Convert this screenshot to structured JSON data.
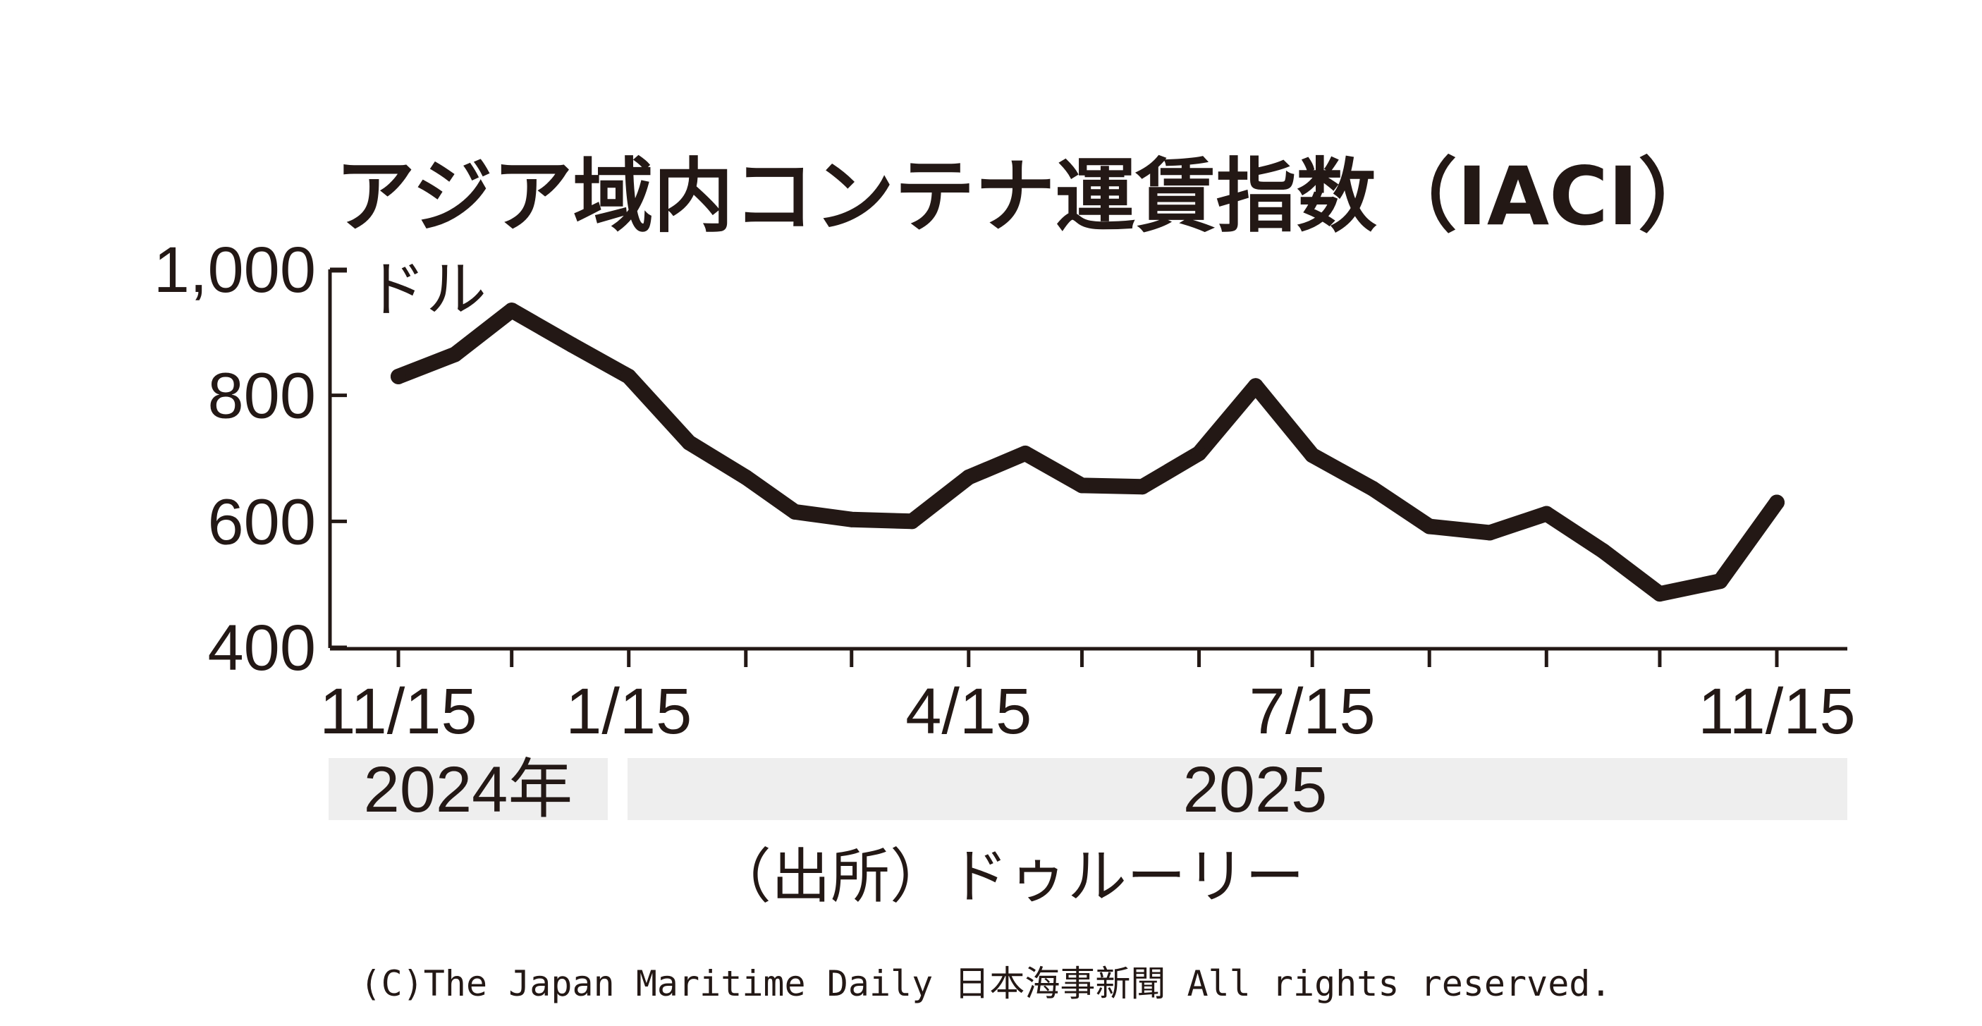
{
  "chart_data": {
    "type": "line",
    "title": "アジア域内コンテナ運賃指数（IACI）",
    "unit": "ドル",
    "x": [
      "2024-11-15",
      "2024-11-30",
      "2024-12-15",
      "2024-12-31",
      "2025-01-15",
      "2025-01-31",
      "2025-02-15",
      "2025-02-28",
      "2025-03-15",
      "2025-03-31",
      "2025-04-15",
      "2025-04-30",
      "2025-05-15",
      "2025-05-31",
      "2025-06-15",
      "2025-06-30",
      "2025-07-15",
      "2025-07-31",
      "2025-08-15",
      "2025-08-31",
      "2025-09-15",
      "2025-09-30",
      "2025-10-15",
      "2025-10-31",
      "2025-11-15"
    ],
    "series": [
      {
        "values": [
          830,
          865,
          935,
          880,
          830,
          725,
          670,
          615,
          603,
          600,
          670,
          708,
          657,
          655,
          708,
          815,
          705,
          652,
          592,
          582,
          612,
          553,
          485,
          505,
          630
        ]
      }
    ],
    "ylim": [
      400,
      1000
    ],
    "yticks": [
      "400",
      "600",
      "800",
      "1,000"
    ],
    "xticks": [
      "11/15",
      "1/15",
      "4/15",
      "7/15",
      "11/15"
    ],
    "xtick_dates": [
      "2024-11-15",
      "2025-01-15",
      "2025-04-15",
      "2025-07-15",
      "2025-11-15"
    ],
    "minor_tick_dates": [
      "2024-11-15",
      "2024-12-15",
      "2025-01-15",
      "2025-02-15",
      "2025-03-15",
      "2025-04-15",
      "2025-05-15",
      "2025-06-15",
      "2025-07-15",
      "2025-08-15",
      "2025-09-15",
      "2025-10-15",
      "2025-11-15"
    ],
    "year_bands": [
      {
        "label": "2024年",
        "from": "2024-11-15",
        "to": "2024-12-31"
      },
      {
        "label": "2025",
        "from": "2025-01-15",
        "to": "2025-11-15"
      }
    ],
    "source": "（出所）ドゥルーリー",
    "line_color": "#231815",
    "band_color": "#eeeeee"
  },
  "copyright": "(C)The Japan Maritime Daily 日本海事新聞 All rights reserved."
}
